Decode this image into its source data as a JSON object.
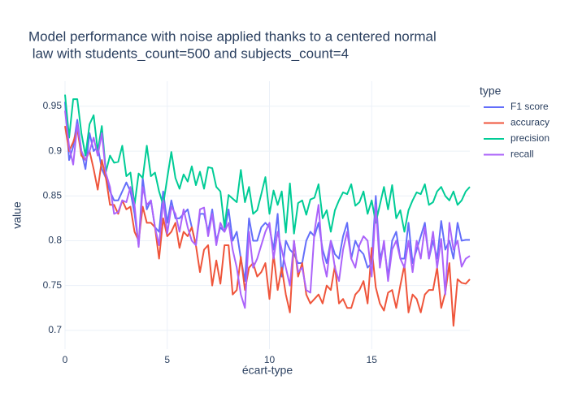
{
  "chart_data": {
    "type": "line",
    "title": [
      "Model performance with noise applied thanks to a centered normal",
      " law with students_count=500 and subjects_count=4"
    ],
    "xlabel": "écart-type",
    "ylabel": "value",
    "legend_title": "type",
    "x": [
      0,
      0.2,
      0.4,
      0.6,
      0.8,
      1,
      1.2,
      1.4,
      1.6,
      1.8,
      2,
      2.2,
      2.4,
      2.6,
      2.8,
      3,
      3.2,
      3.4,
      3.6,
      3.8,
      4,
      4.2,
      4.4,
      4.6,
      4.8,
      5,
      5.2,
      5.4,
      5.6,
      5.8,
      6,
      6.2,
      6.4,
      6.6,
      6.8,
      7,
      7.2,
      7.4,
      7.6,
      7.8,
      8,
      8.2,
      8.4,
      8.6,
      8.8,
      9,
      9.2,
      9.4,
      9.6,
      9.8,
      10,
      10.2,
      10.4,
      10.6,
      10.8,
      11,
      11.2,
      11.4,
      11.6,
      11.8,
      12,
      12.2,
      12.4,
      12.6,
      12.8,
      13,
      13.2,
      13.4,
      13.6,
      13.8,
      14,
      14.2,
      14.4,
      14.6,
      14.8,
      15,
      15.2,
      15.4,
      15.6,
      15.8,
      16,
      16.2,
      16.4,
      16.6,
      16.8,
      17,
      17.2,
      17.4,
      17.6,
      17.8,
      18,
      18.2,
      18.4,
      18.6,
      18.8,
      19,
      19.2,
      19.4,
      19.6,
      19.8
    ],
    "series": [
      {
        "name": "F1 score",
        "color": "#636efa",
        "values": [
          0.955,
          0.89,
          0.905,
          0.935,
          0.9,
          0.88,
          0.92,
          0.9,
          0.905,
          0.88,
          0.87,
          0.855,
          0.845,
          0.845,
          0.855,
          0.865,
          0.855,
          0.83,
          0.795,
          0.87,
          0.835,
          0.845,
          0.815,
          0.81,
          0.855,
          0.82,
          0.845,
          0.825,
          0.825,
          0.83,
          0.835,
          0.815,
          0.795,
          0.83,
          0.83,
          0.81,
          0.835,
          0.8,
          0.815,
          0.81,
          0.835,
          0.8,
          0.81,
          0.78,
          0.755,
          0.825,
          0.8,
          0.8,
          0.815,
          0.82,
          0.815,
          0.79,
          0.83,
          0.76,
          0.8,
          0.79,
          0.785,
          0.775,
          0.775,
          0.8,
          0.81,
          0.805,
          0.82,
          0.79,
          0.775,
          0.8,
          0.785,
          0.78,
          0.805,
          0.82,
          0.78,
          0.8,
          0.79,
          0.785,
          0.77,
          0.775,
          0.85,
          0.78,
          0.795,
          0.76,
          0.8,
          0.81,
          0.78,
          0.78,
          0.82,
          0.775,
          0.79,
          0.805,
          0.82,
          0.78,
          0.8,
          0.78,
          0.822,
          0.79,
          0.8,
          0.78,
          0.82,
          0.8,
          0.801,
          0.801
        ]
      },
      {
        "name": "accuracy",
        "color": "#EF553B",
        "values": [
          0.928,
          0.9,
          0.91,
          0.925,
          0.895,
          0.89,
          0.9,
          0.88,
          0.857,
          0.89,
          0.87,
          0.84,
          0.84,
          0.83,
          0.845,
          0.835,
          0.838,
          0.81,
          0.8,
          0.838,
          0.82,
          0.82,
          0.815,
          0.78,
          0.825,
          0.805,
          0.81,
          0.82,
          0.792,
          0.81,
          0.805,
          0.815,
          0.795,
          0.765,
          0.79,
          0.795,
          0.75,
          0.778,
          0.752,
          0.795,
          0.795,
          0.74,
          0.745,
          0.782,
          0.745,
          0.77,
          0.775,
          0.76,
          0.765,
          0.775,
          0.735,
          0.785,
          0.745,
          0.77,
          0.74,
          0.72,
          0.8,
          0.76,
          0.775,
          0.74,
          0.73,
          0.735,
          0.74,
          0.73,
          0.75,
          0.745,
          0.772,
          0.73,
          0.735,
          0.725,
          0.725,
          0.74,
          0.745,
          0.755,
          0.73,
          0.792,
          0.748,
          0.73,
          0.722,
          0.742,
          0.745,
          0.725,
          0.75,
          0.773,
          0.72,
          0.74,
          0.735,
          0.72,
          0.74,
          0.745,
          0.745,
          0.77,
          0.725,
          0.742,
          0.775,
          0.705,
          0.757,
          0.753,
          0.752,
          0.757
        ]
      },
      {
        "name": "precision",
        "color": "#00cc96",
        "values": [
          0.963,
          0.915,
          0.958,
          0.958,
          0.92,
          0.895,
          0.93,
          0.94,
          0.9,
          0.928,
          0.877,
          0.895,
          0.887,
          0.888,
          0.906,
          0.872,
          0.876,
          0.84,
          0.875,
          0.87,
          0.906,
          0.872,
          0.876,
          0.855,
          0.84,
          0.87,
          0.899,
          0.87,
          0.858,
          0.874,
          0.866,
          0.883,
          0.862,
          0.877,
          0.858,
          0.882,
          0.881,
          0.86,
          0.855,
          0.815,
          0.851,
          0.847,
          0.843,
          0.879,
          0.843,
          0.86,
          0.83,
          0.834,
          0.852,
          0.871,
          0.83,
          0.856,
          0.84,
          0.855,
          0.809,
          0.864,
          0.808,
          0.842,
          0.845,
          0.829,
          0.846,
          0.848,
          0.863,
          0.825,
          0.834,
          0.81,
          0.834,
          0.845,
          0.854,
          0.852,
          0.863,
          0.839,
          0.843,
          0.855,
          0.83,
          0.845,
          0.82,
          0.84,
          0.86,
          0.835,
          0.862,
          0.825,
          0.834,
          0.81,
          0.834,
          0.845,
          0.854,
          0.852,
          0.863,
          0.84,
          0.843,
          0.855,
          0.86,
          0.85,
          0.845,
          0.855,
          0.84,
          0.845,
          0.855,
          0.86
        ]
      },
      {
        "name": "recall",
        "color": "#ab63fa",
        "values": [
          0.945,
          0.905,
          0.885,
          0.93,
          0.9,
          0.89,
          0.9,
          0.915,
          0.895,
          0.92,
          0.875,
          0.86,
          0.83,
          0.832,
          0.845,
          0.843,
          0.86,
          0.84,
          0.793,
          0.86,
          0.84,
          0.845,
          0.815,
          0.795,
          0.845,
          0.808,
          0.838,
          0.83,
          0.81,
          0.835,
          0.815,
          0.8,
          0.795,
          0.835,
          0.837,
          0.805,
          0.83,
          0.795,
          0.82,
          0.81,
          0.82,
          0.79,
          0.77,
          0.74,
          0.725,
          0.81,
          0.77,
          0.78,
          0.795,
          0.81,
          0.82,
          0.78,
          0.81,
          0.79,
          0.77,
          0.75,
          0.8,
          0.765,
          0.77,
          0.745,
          0.742,
          0.81,
          0.84,
          0.78,
          0.76,
          0.8,
          0.77,
          0.755,
          0.79,
          0.81,
          0.78,
          0.77,
          0.795,
          0.805,
          0.8,
          0.76,
          0.84,
          0.77,
          0.8,
          0.755,
          0.79,
          0.8,
          0.78,
          0.77,
          0.8,
          0.765,
          0.8,
          0.78,
          0.815,
          0.78,
          0.81,
          0.77,
          0.802,
          0.74,
          0.82,
          0.79,
          0.8,
          0.771,
          0.78,
          0.783
        ]
      }
    ],
    "xlim": [
      0,
      19.8
    ],
    "ylim": [
      0.679,
      0.978
    ],
    "xticks": [
      0,
      5,
      10,
      15
    ],
    "yticks": [
      0.7,
      0.75,
      0.8,
      0.85,
      0.9,
      0.95
    ],
    "grid": true,
    "legend": "right"
  }
}
